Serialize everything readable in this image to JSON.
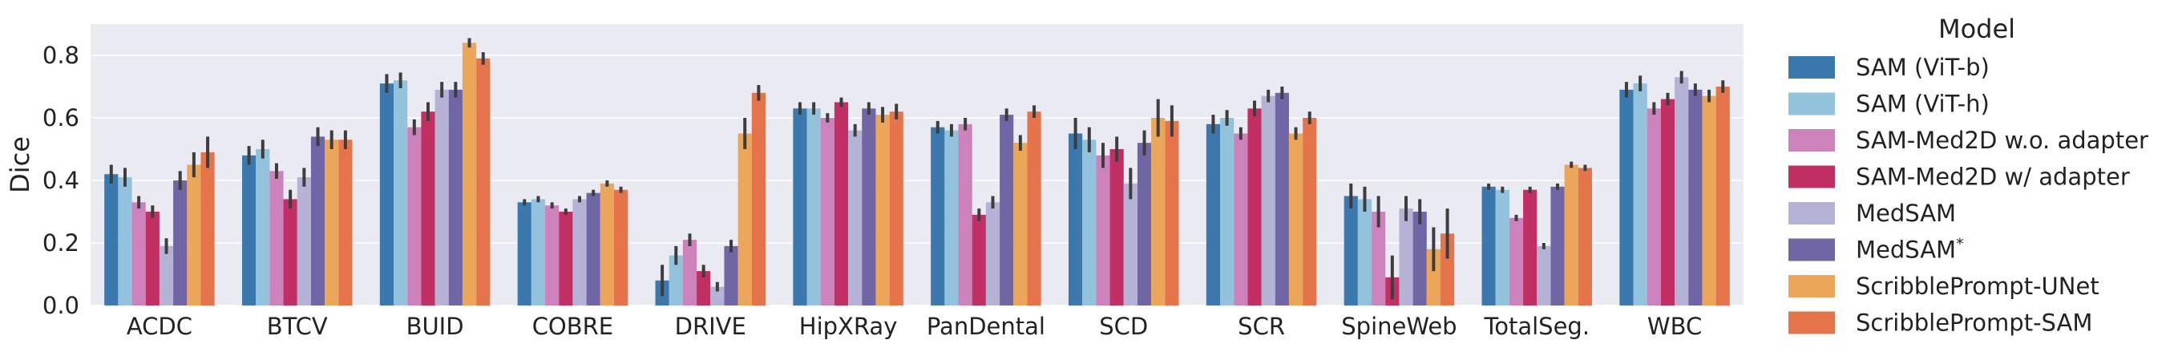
{
  "chart_data": {
    "type": "bar",
    "title": "",
    "xlabel": "",
    "ylabel": "Dice",
    "ylim": [
      0,
      0.9
    ],
    "yticks": [
      "0.0",
      "0.2",
      "0.4",
      "0.6",
      "0.8"
    ],
    "grid": true,
    "legend_title": "Model",
    "legend_position": "right",
    "categories": [
      "ACDC",
      "BTCV",
      "BUID",
      "COBRE",
      "DRIVE",
      "HipXRay",
      "PanDental",
      "SCD",
      "SCR",
      "SpineWeb",
      "TotalSeg.",
      "WBC"
    ],
    "series": [
      {
        "name": "SAM (ViT-b)",
        "color": "#3a78ad",
        "values": [
          0.42,
          0.48,
          0.71,
          0.33,
          0.08,
          0.63,
          0.57,
          0.55,
          0.58,
          0.35,
          0.38,
          0.69
        ],
        "errors": [
          0.03,
          0.03,
          0.03,
          0.01,
          0.05,
          0.02,
          0.02,
          0.05,
          0.03,
          0.04,
          0.01,
          0.025
        ]
      },
      {
        "name": "SAM (ViT-h)",
        "color": "#92c2dc",
        "values": [
          0.41,
          0.5,
          0.72,
          0.34,
          0.16,
          0.63,
          0.56,
          0.53,
          0.6,
          0.34,
          0.37,
          0.71
        ],
        "errors": [
          0.03,
          0.03,
          0.025,
          0.01,
          0.03,
          0.02,
          0.02,
          0.04,
          0.025,
          0.04,
          0.01,
          0.025
        ]
      },
      {
        "name": "SAM-Med2D w.o. adapter",
        "color": "#cd82bb",
        "values": [
          0.33,
          0.43,
          0.57,
          0.32,
          0.21,
          0.6,
          0.58,
          0.48,
          0.55,
          0.3,
          0.28,
          0.63
        ],
        "errors": [
          0.02,
          0.025,
          0.025,
          0.01,
          0.02,
          0.015,
          0.02,
          0.04,
          0.02,
          0.05,
          0.01,
          0.02
        ]
      },
      {
        "name": "SAM-Med2D w/ adapter",
        "color": "#c12f63",
        "values": [
          0.3,
          0.34,
          0.62,
          0.3,
          0.11,
          0.65,
          0.29,
          0.5,
          0.63,
          0.09,
          0.37,
          0.66
        ],
        "errors": [
          0.02,
          0.03,
          0.03,
          0.01,
          0.02,
          0.015,
          0.02,
          0.04,
          0.025,
          0.07,
          0.01,
          0.02
        ]
      },
      {
        "name": "MedSAM",
        "color": "#b4b2d5",
        "values": [
          0.19,
          0.41,
          0.69,
          0.34,
          0.06,
          0.56,
          0.33,
          0.39,
          0.67,
          0.31,
          0.19,
          0.73
        ],
        "errors": [
          0.025,
          0.03,
          0.025,
          0.01,
          0.015,
          0.02,
          0.02,
          0.05,
          0.02,
          0.04,
          0.01,
          0.02
        ]
      },
      {
        "name": "MedSAM*",
        "color": "#7066a5",
        "values": [
          0.4,
          0.54,
          0.69,
          0.36,
          0.19,
          0.63,
          0.61,
          0.52,
          0.68,
          0.3,
          0.38,
          0.69
        ],
        "errors": [
          0.03,
          0.03,
          0.025,
          0.01,
          0.02,
          0.02,
          0.02,
          0.04,
          0.02,
          0.04,
          0.01,
          0.02
        ]
      },
      {
        "name": "ScribblePrompt-UNet",
        "color": "#eca65a",
        "values": [
          0.45,
          0.53,
          0.84,
          0.39,
          0.55,
          0.61,
          0.52,
          0.6,
          0.55,
          0.18,
          0.45,
          0.67
        ],
        "errors": [
          0.04,
          0.03,
          0.015,
          0.01,
          0.05,
          0.025,
          0.025,
          0.06,
          0.02,
          0.07,
          0.01,
          0.02
        ]
      },
      {
        "name": "ScribblePrompt-SAM",
        "color": "#e6744a",
        "values": [
          0.49,
          0.53,
          0.79,
          0.37,
          0.68,
          0.62,
          0.62,
          0.59,
          0.6,
          0.23,
          0.44,
          0.7
        ],
        "errors": [
          0.05,
          0.03,
          0.02,
          0.01,
          0.025,
          0.025,
          0.02,
          0.05,
          0.02,
          0.08,
          0.01,
          0.02
        ]
      }
    ]
  }
}
